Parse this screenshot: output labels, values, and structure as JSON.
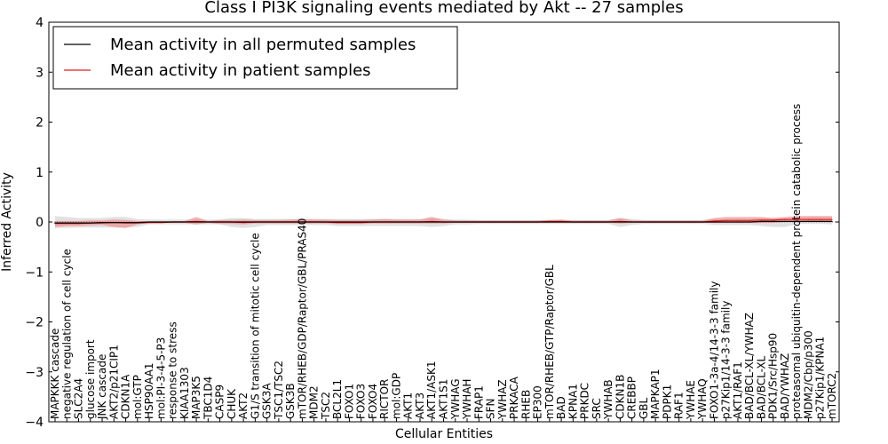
{
  "chart_data": {
    "type": "line",
    "title": "Class I PI3K signaling events mediated by Akt -- 27 samples",
    "xlabel": "Cellular Entities",
    "ylabel": "Inferred Activity",
    "ylim": [
      -4,
      4
    ],
    "yticks": [
      -4,
      -3,
      -2,
      -1,
      0,
      1,
      2,
      3,
      4
    ],
    "grid": false,
    "legend_position": "top-left",
    "colors": {
      "permuted": "#000000",
      "patient": "#e41a1c",
      "patient_band": "#f08080",
      "permuted_band": "#c8c8c8",
      "axes": "#000000"
    },
    "categories": [
      "MAPKKK cascade",
      "negative regulation of cell cycle",
      "SLC2A4",
      "glucose import",
      "JNK cascade",
      "AKT2/p21CIP1",
      "CDKN1A",
      "mol:GTP",
      "HSP90AA1",
      "mol:PI-3-4-5-P3",
      "response to stress",
      "KIAA1303",
      "MAP3K5",
      "TBC1D4",
      "CASP9",
      "CHUK",
      "AKT2",
      "G1/S transition of mitotic cell cycle",
      "GSK3A",
      "TSC1/TSC2",
      "GSK3B",
      "mTOR/RHEB/GDP/Raptor/GBL/PRAS40",
      "MDM2",
      "TSC2",
      "BCL2L1",
      "FOXO1",
      "FOXO3",
      "FOXO4",
      "RICTOR",
      "mol:GDP",
      "AKT1",
      "AKT3",
      "AKT1/ASK1",
      "AKT1S1",
      "YWHAG",
      "YWHAH",
      "FRAP1",
      "SFN",
      "YWHAZ",
      "PRKACA",
      "RHEB",
      "EP300",
      "mTOR/RHEB/GTP/Raptor/GBL",
      "BAD",
      "KPNA1",
      "PRKDC",
      "SRC",
      "YWHAB",
      "CDKN1B",
      "CREBBP",
      "GBL",
      "MAPKAP1",
      "PDPK1",
      "RAF1",
      "YWHAE",
      "YWHAQ",
      "FOXO1-3a-4/14-3-3 family",
      "p27Kip1/14-3-3 family",
      "AKT1/RAF1",
      "BAD/BCL-XL/YWHAZ",
      "BAD/BCL-XL",
      "PDK1/Src/Hsp90",
      "BAD/YWHAZ",
      "proteasomal ubiquitin-dependent protein catabolic process",
      "MDM2/Cbp/p300",
      "p27Kip1/KPNA1",
      "mTORC2"
    ],
    "series": [
      {
        "name": "Mean activity in all permuted samples",
        "values": [
          -0.02,
          -0.02,
          -0.02,
          -0.02,
          -0.01,
          -0.01,
          -0.01,
          -0.01,
          0,
          0,
          0,
          0,
          0,
          0,
          0,
          0,
          0,
          0,
          0,
          0,
          0,
          0,
          0,
          0,
          0,
          0,
          0,
          0,
          0,
          0,
          0,
          0,
          0,
          0,
          0,
          0,
          0,
          0,
          0,
          0,
          0,
          0,
          0,
          0,
          0,
          0,
          0,
          0,
          0,
          0,
          0,
          0,
          0,
          0,
          0,
          0,
          0,
          0,
          0,
          0,
          0.01,
          0.01,
          0.01,
          0.01,
          0.01,
          0.01,
          0.01
        ],
        "band_lower": [
          -0.12,
          -0.12,
          -0.11,
          -0.11,
          -0.11,
          -0.11,
          -0.11,
          -0.1,
          -0.05,
          -0.05,
          -0.05,
          -0.05,
          -0.05,
          -0.05,
          -0.05,
          -0.1,
          -0.12,
          -0.1,
          -0.06,
          -0.06,
          -0.06,
          -0.06,
          -0.06,
          -0.06,
          -0.08,
          -0.08,
          -0.08,
          -0.08,
          -0.08,
          -0.08,
          -0.08,
          -0.08,
          -0.1,
          -0.08,
          -0.05,
          -0.05,
          -0.04,
          -0.04,
          -0.04,
          -0.04,
          -0.04,
          -0.04,
          -0.04,
          -0.04,
          -0.04,
          -0.04,
          -0.04,
          -0.04,
          -0.1,
          -0.06,
          -0.04,
          -0.04,
          -0.04,
          -0.04,
          -0.04,
          -0.04,
          -0.06,
          -0.06,
          -0.06,
          -0.06,
          -0.08,
          -0.1,
          -0.1,
          -0.04,
          -0.04,
          -0.04,
          -0.05
        ],
        "band_upper": [
          0.12,
          0.1,
          0.08,
          0.08,
          0.08,
          0.1,
          0.1,
          0.06,
          0.05,
          0.05,
          0.05,
          0.05,
          0.05,
          0.05,
          0.05,
          0.08,
          0.08,
          0.06,
          0.06,
          0.06,
          0.06,
          0.06,
          0.06,
          0.06,
          0.06,
          0.06,
          0.06,
          0.06,
          0.06,
          0.06,
          0.06,
          0.06,
          0.08,
          0.06,
          0.05,
          0.05,
          0.04,
          0.04,
          0.04,
          0.04,
          0.04,
          0.04,
          0.04,
          0.04,
          0.04,
          0.04,
          0.04,
          0.04,
          0.08,
          0.06,
          0.04,
          0.04,
          0.04,
          0.04,
          0.04,
          0.04,
          0.06,
          0.06,
          0.06,
          0.06,
          0.08,
          0.08,
          0.08,
          0.08,
          0.1,
          0.1,
          0.1
        ]
      },
      {
        "name": "Mean activity in patient samples",
        "values": [
          -0.03,
          -0.03,
          -0.03,
          -0.02,
          -0.02,
          -0.01,
          -0.02,
          -0.02,
          -0.01,
          -0.01,
          0,
          0,
          0.01,
          0,
          0,
          0,
          -0.01,
          0,
          0,
          0,
          0,
          0,
          0,
          0,
          -0.01,
          -0.01,
          -0.01,
          0,
          0,
          0,
          0,
          0,
          0.01,
          0,
          0,
          0,
          0,
          0,
          0,
          0,
          0,
          0,
          0.01,
          0.01,
          0,
          0,
          0,
          0,
          0.01,
          0,
          0,
          0,
          0,
          0,
          0,
          0,
          0.02,
          0.03,
          0.03,
          0.03,
          0.04,
          0.04,
          0.05,
          0.05,
          0.05,
          0.05,
          0.05
        ],
        "band_lower": [
          -0.1,
          -0.08,
          -0.08,
          -0.07,
          -0.06,
          -0.1,
          -0.12,
          -0.05,
          -0.02,
          -0.02,
          -0.02,
          -0.02,
          -0.05,
          -0.02,
          -0.04,
          -0.04,
          -0.05,
          -0.03,
          -0.03,
          -0.03,
          -0.03,
          -0.03,
          -0.03,
          -0.03,
          -0.04,
          -0.04,
          -0.04,
          -0.03,
          -0.03,
          -0.03,
          -0.03,
          -0.03,
          -0.03,
          -0.03,
          -0.02,
          -0.02,
          -0.02,
          -0.02,
          -0.02,
          -0.02,
          -0.02,
          -0.02,
          -0.02,
          -0.02,
          -0.02,
          -0.02,
          -0.02,
          -0.02,
          -0.03,
          -0.02,
          -0.02,
          -0.02,
          -0.02,
          -0.02,
          -0.02,
          -0.02,
          -0.02,
          -0.02,
          -0.02,
          -0.02,
          -0.02,
          -0.02,
          0,
          0,
          0,
          0,
          0
        ],
        "band_upper": [
          0.02,
          0.02,
          0.02,
          0.03,
          0.03,
          0.05,
          0.04,
          0.02,
          0.01,
          0.01,
          0.02,
          0.02,
          0.1,
          0.02,
          0.04,
          0.04,
          0.05,
          0.04,
          0.04,
          0.04,
          0.05,
          0.06,
          0.05,
          0.05,
          0.04,
          0.04,
          0.04,
          0.05,
          0.06,
          0.05,
          0.05,
          0.05,
          0.1,
          0.05,
          0.03,
          0.03,
          0.03,
          0.03,
          0.03,
          0.03,
          0.03,
          0.03,
          0.04,
          0.05,
          0.03,
          0.03,
          0.03,
          0.03,
          0.08,
          0.03,
          0.03,
          0.03,
          0.03,
          0.03,
          0.03,
          0.03,
          0.08,
          0.1,
          0.1,
          0.1,
          0.1,
          0.08,
          0.1,
          0.12,
          0.12,
          0.12,
          0.12
        ]
      }
    ]
  }
}
